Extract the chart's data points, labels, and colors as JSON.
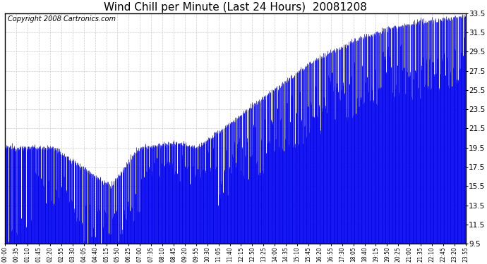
{
  "title": "Wind Chill per Minute (Last 24 Hours)  20081208",
  "copyright": "Copyright 2008 Cartronics.com",
  "line_color": "#0000EE",
  "fill_color": "#0000EE",
  "bg_color": "#ffffff",
  "grid_color": "#cccccc",
  "ylim": [
    9.5,
    33.5
  ],
  "yticks": [
    9.5,
    11.5,
    13.5,
    15.5,
    17.5,
    19.5,
    21.5,
    23.5,
    25.5,
    27.5,
    29.5,
    31.5,
    33.5
  ],
  "title_fontsize": 11,
  "copyright_fontsize": 7,
  "xtick_labels": [
    "00:00",
    "00:35",
    "01:10",
    "01:45",
    "02:20",
    "02:55",
    "03:30",
    "04:05",
    "04:40",
    "05:15",
    "05:50",
    "06:25",
    "07:00",
    "07:35",
    "08:10",
    "08:45",
    "09:20",
    "09:55",
    "10:30",
    "11:05",
    "11:40",
    "12:15",
    "12:50",
    "13:25",
    "14:00",
    "14:35",
    "15:10",
    "15:45",
    "16:20",
    "16:55",
    "17:30",
    "18:05",
    "18:40",
    "19:15",
    "19:50",
    "20:25",
    "21:00",
    "21:35",
    "22:10",
    "22:45",
    "23:20",
    "23:55"
  ]
}
